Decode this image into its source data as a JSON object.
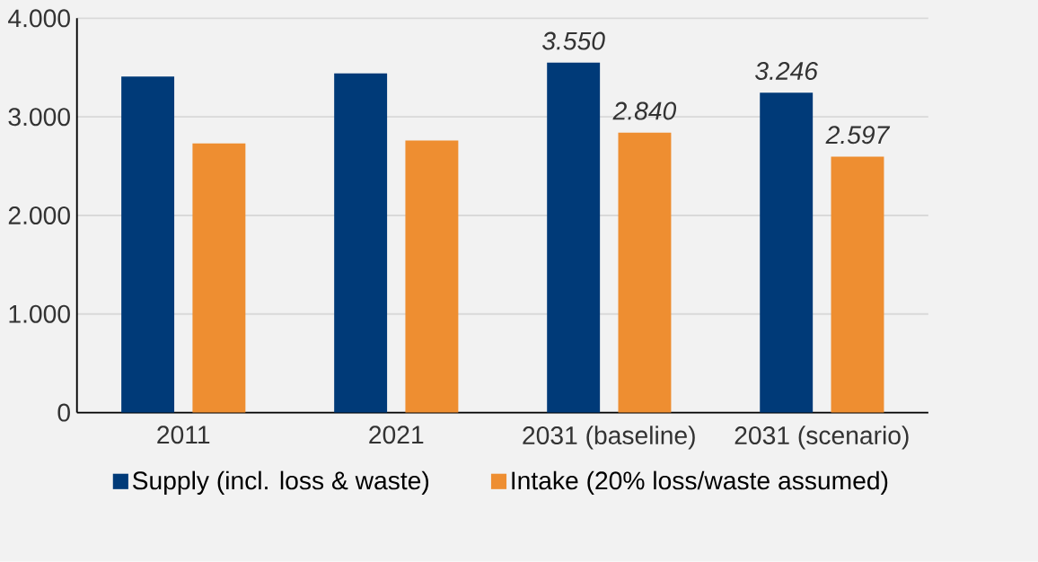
{
  "chart_data": {
    "type": "bar",
    "categories": [
      "2011",
      "2021",
      "2031 (baseline)",
      "2031 (scenario)"
    ],
    "series": [
      {
        "name": "Supply (incl. loss & waste)",
        "color": "#003a78",
        "values": [
          3410,
          3440,
          3550,
          3246
        ],
        "value_labels": [
          null,
          null,
          "3.550",
          "3.246"
        ]
      },
      {
        "name": "Intake (20% loss/waste assumed)",
        "color": "#ee8e31",
        "values": [
          2730,
          2760,
          2840,
          2597
        ],
        "value_labels": [
          null,
          null,
          "2.840",
          "2.597"
        ]
      }
    ],
    "ylim": [
      0,
      4000
    ],
    "yticks": [
      {
        "value": 0,
        "label": "0"
      },
      {
        "value": 1000,
        "label": "1.000"
      },
      {
        "value": 2000,
        "label": "2.000"
      },
      {
        "value": 3000,
        "label": "3.000"
      },
      {
        "value": 4000,
        "label": "4.000"
      }
    ],
    "grid": "y",
    "legend": "bottom"
  }
}
